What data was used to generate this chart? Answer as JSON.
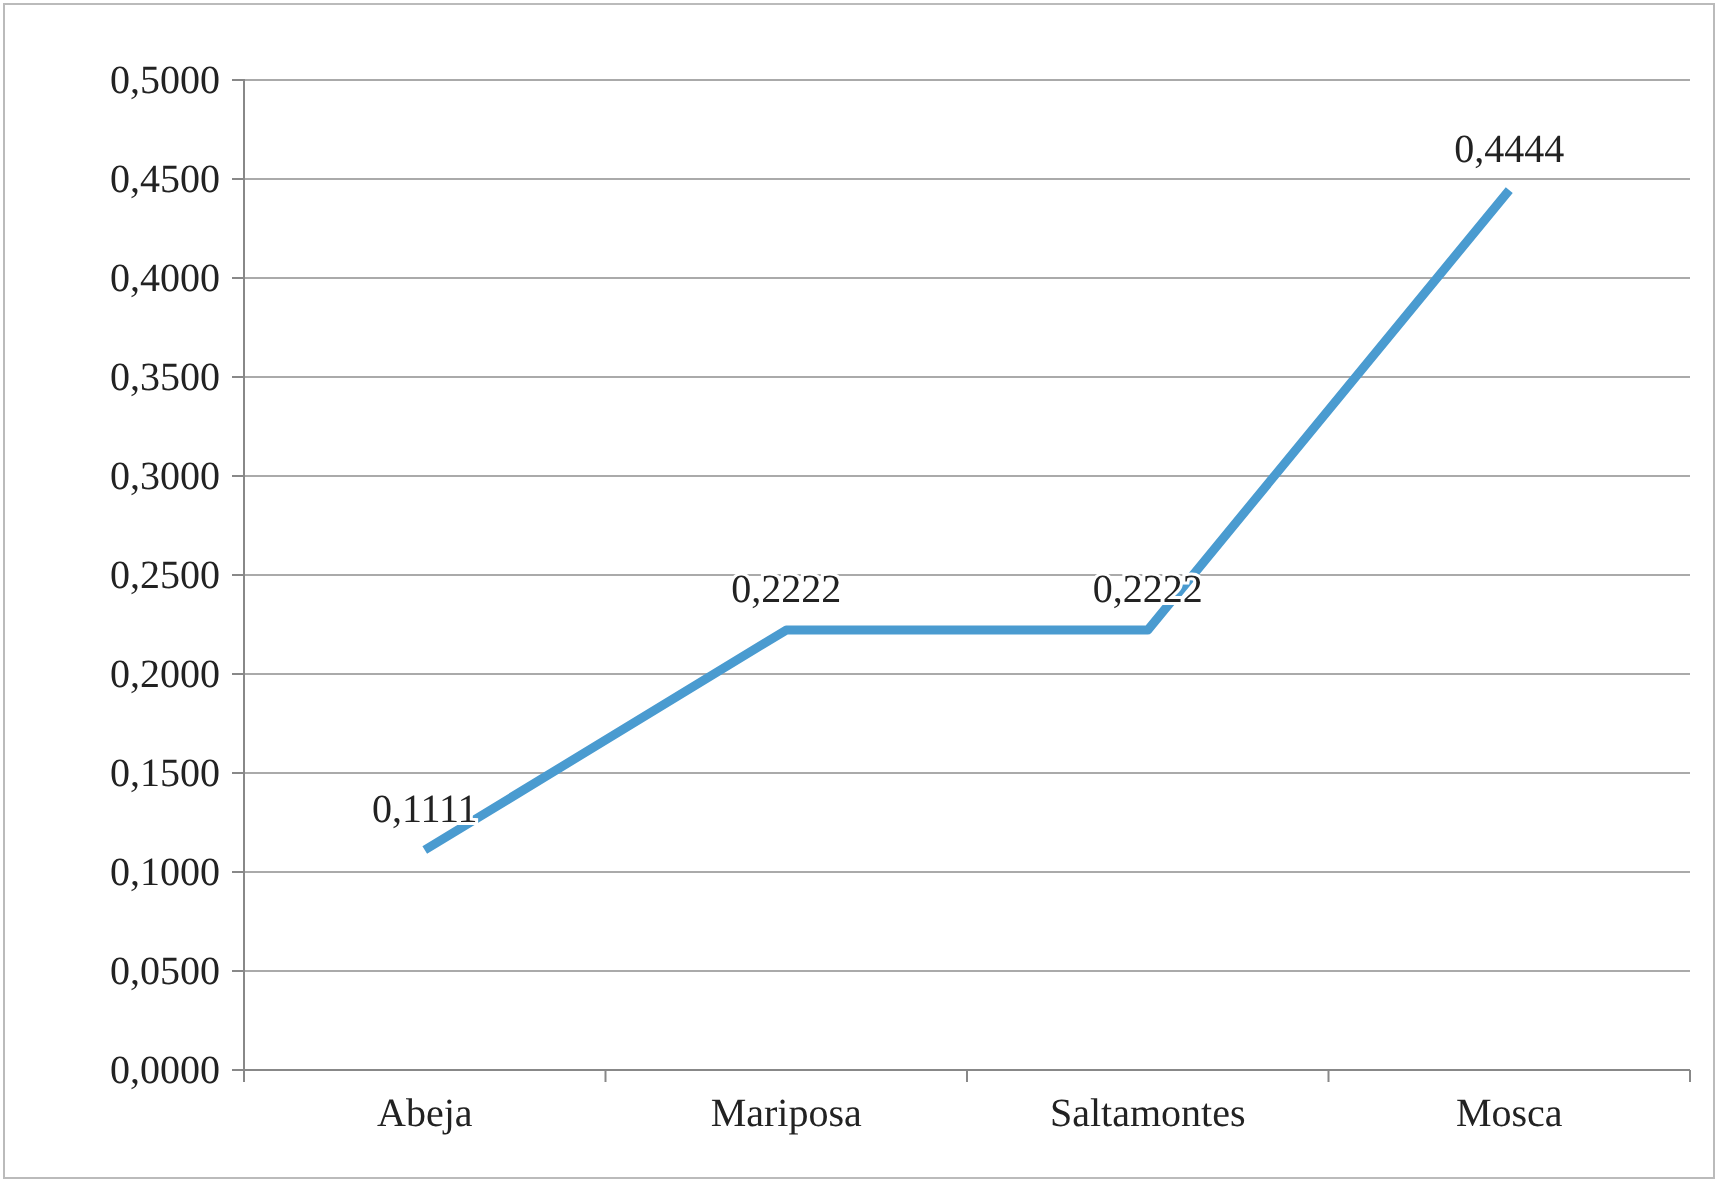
{
  "chart_data": {
    "type": "line",
    "categories": [
      "Abeja",
      "Mariposa",
      "Saltamontes",
      "Mosca"
    ],
    "series": [
      {
        "color": "#4a9bd0",
        "values": [
          0.1111,
          0.2222,
          0.2222,
          0.4444
        ],
        "value_labels": [
          "0,1111",
          "0,2222",
          "0,2222",
          "0,4444"
        ]
      }
    ],
    "ylim": [
      0,
      0.5
    ],
    "yticks": [
      {
        "value": 0,
        "label": "0,0000"
      },
      {
        "value": 0.05,
        "label": "0,0500"
      },
      {
        "value": 0.1,
        "label": "0,1000"
      },
      {
        "value": 0.15,
        "label": "0,1500"
      },
      {
        "value": 0.2,
        "label": "0,2000"
      },
      {
        "value": 0.25,
        "label": "0,2500"
      },
      {
        "value": 0.3,
        "label": "0,3000"
      },
      {
        "value": 0.35,
        "label": "0,3500"
      },
      {
        "value": 0.4,
        "label": "0,4000"
      },
      {
        "value": 0.45,
        "label": "0,4500"
      },
      {
        "value": 0.5,
        "label": "0,5000"
      }
    ],
    "grid": "y",
    "marker": "none",
    "line_style": "solid"
  }
}
